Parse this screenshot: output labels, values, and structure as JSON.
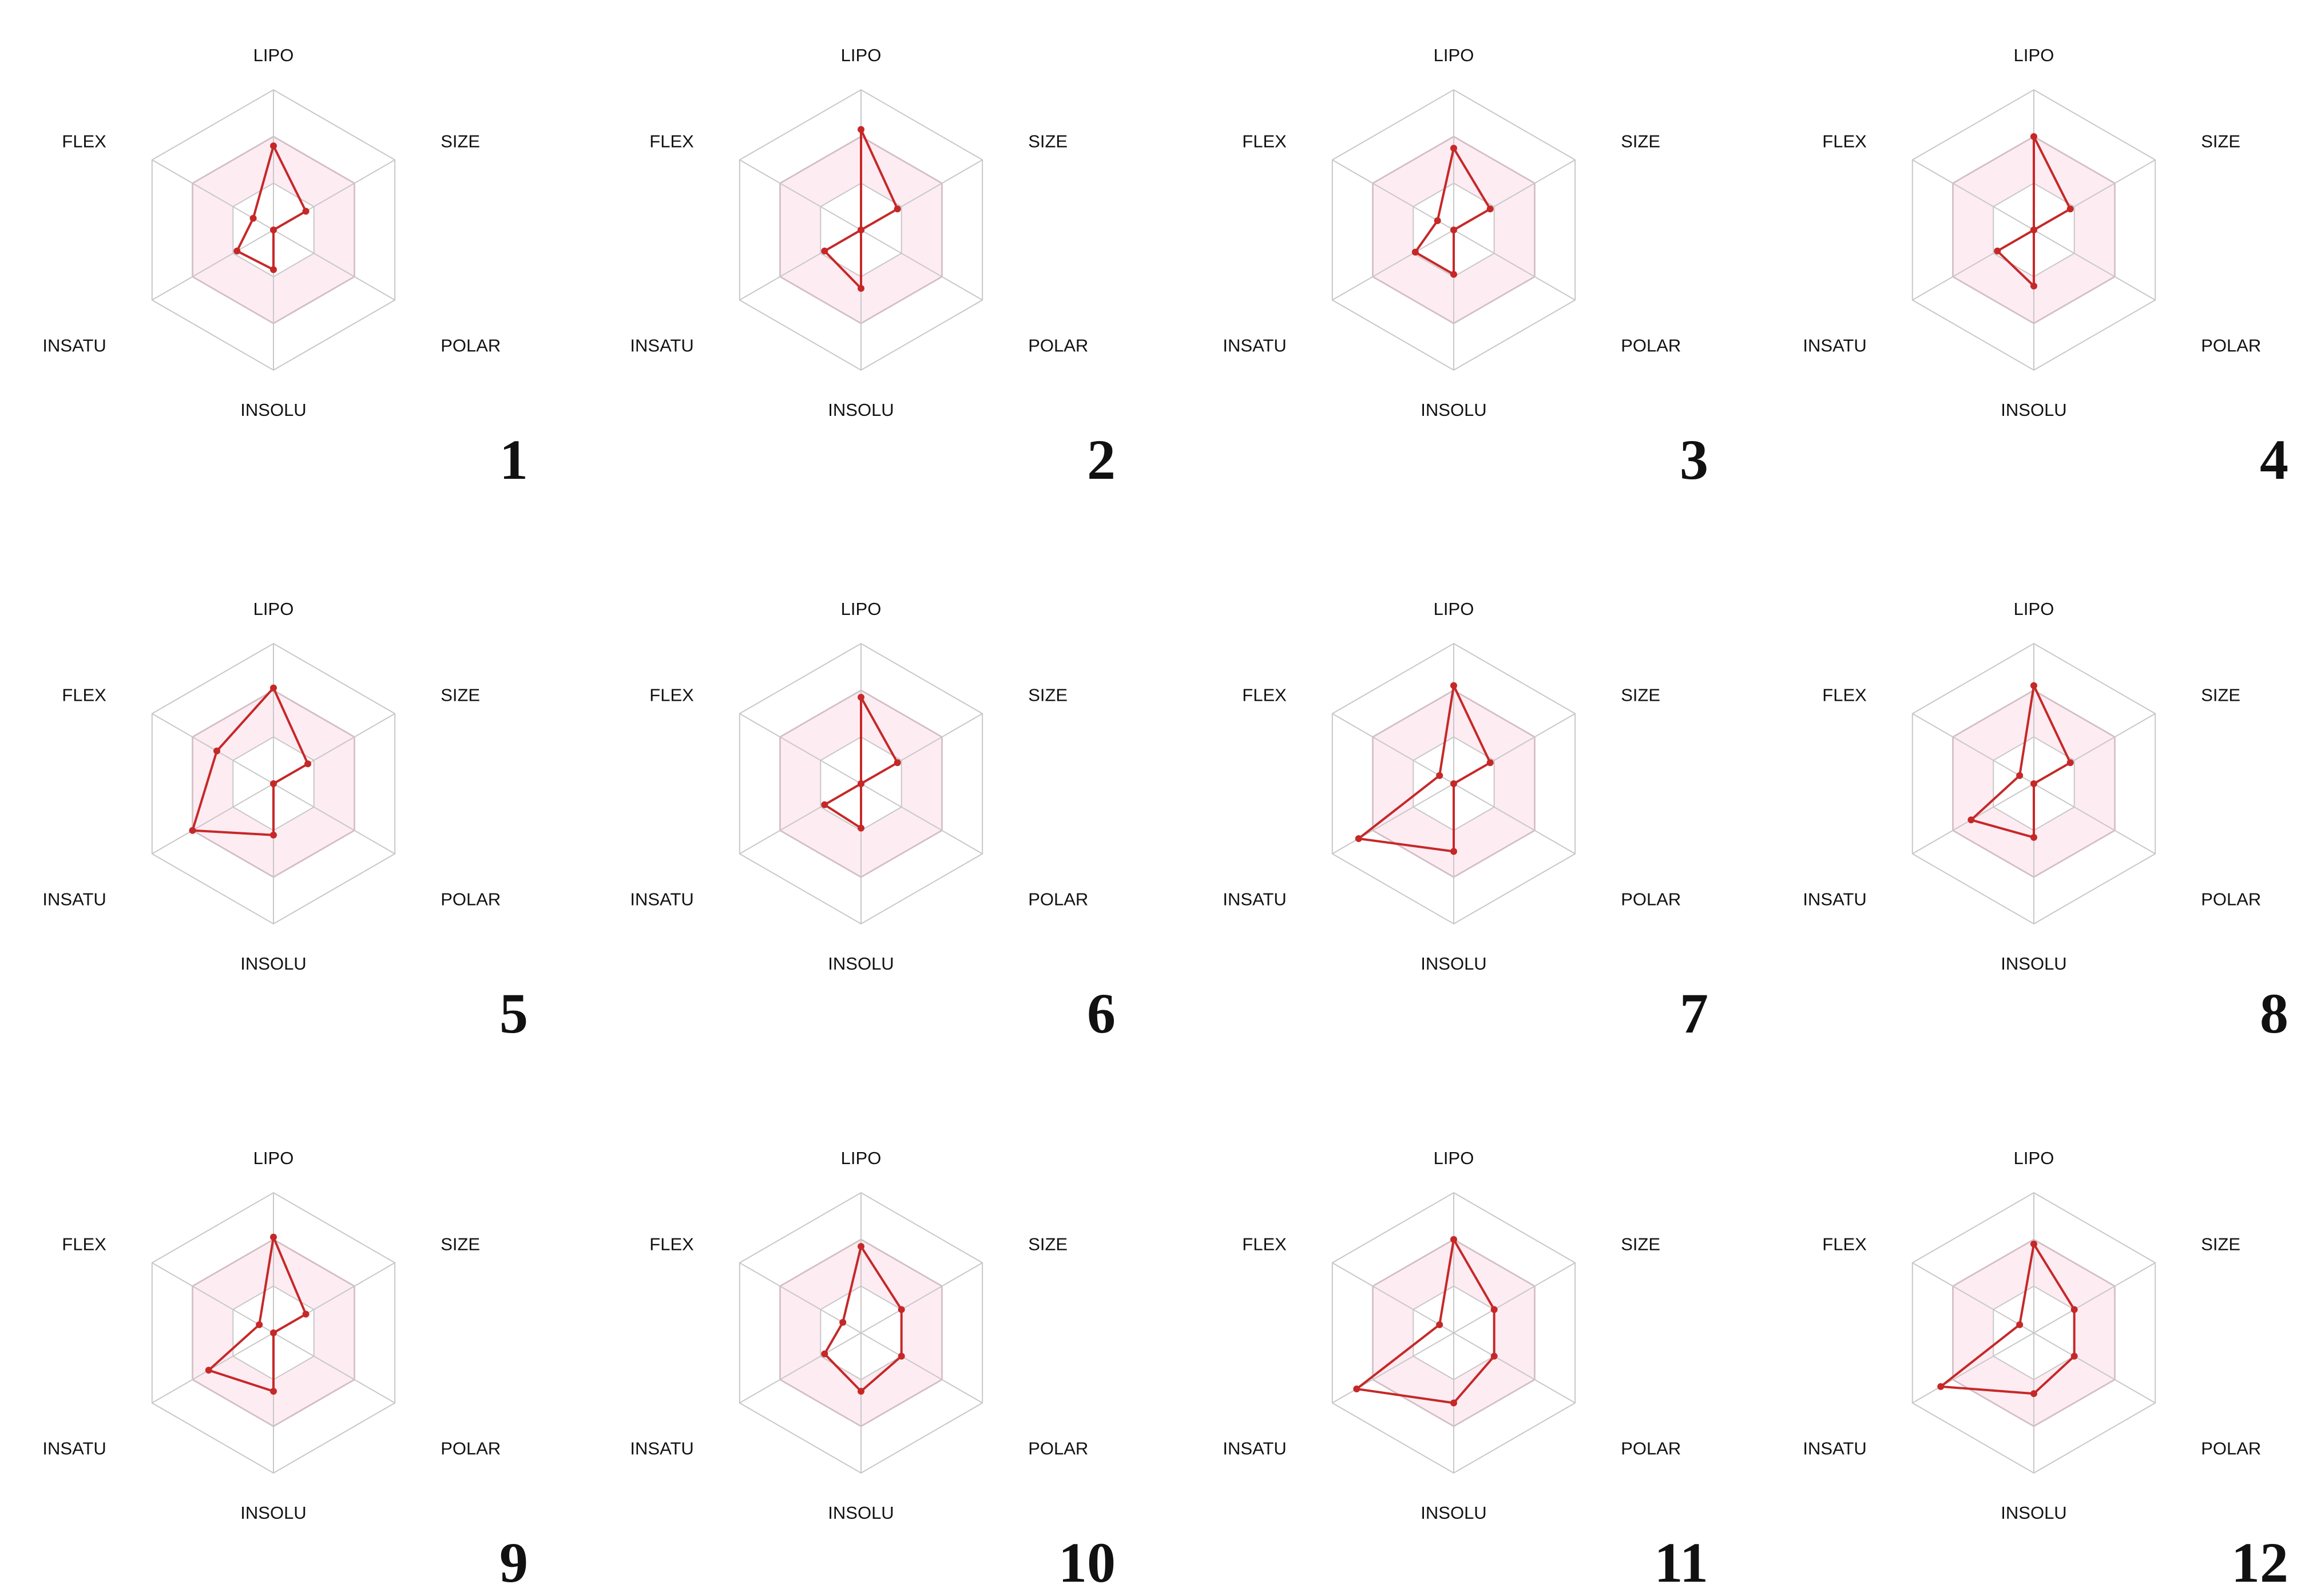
{
  "chart_data": {
    "type": "radar",
    "axes": [
      "LIPO",
      "SIZE",
      "POLAR",
      "INSOLU",
      "INSATU",
      "FLEX"
    ],
    "axis_max": 3,
    "grid_levels": 3,
    "optimal_range_band": true,
    "colors": {
      "series_line": "#c62828",
      "series_point": "#c62828",
      "optimal_fill": "#fde4ee",
      "optimal_stroke": "#e8809a",
      "grid": "#c8c8c8"
    },
    "panels": [
      {
        "panel_label": "1",
        "values": [
          1.8,
          0.8,
          0.0,
          0.85,
          0.9,
          0.5
        ]
      },
      {
        "panel_label": "2",
        "values": [
          2.15,
          0.9,
          0.0,
          1.25,
          0.9,
          0.0
        ]
      },
      {
        "panel_label": "3",
        "values": [
          1.75,
          0.9,
          0.0,
          0.95,
          0.95,
          0.4
        ]
      },
      {
        "panel_label": "4",
        "values": [
          2.0,
          0.9,
          0.0,
          1.2,
          0.9,
          0.0
        ]
      },
      {
        "panel_label": "5",
        "values": [
          2.05,
          0.85,
          0.0,
          1.1,
          2.0,
          1.4
        ]
      },
      {
        "panel_label": "6",
        "values": [
          1.85,
          0.9,
          0.0,
          0.95,
          0.9,
          0.0
        ]
      },
      {
        "panel_label": "7",
        "values": [
          2.1,
          0.9,
          0.0,
          1.45,
          2.35,
          0.35
        ]
      },
      {
        "panel_label": "8",
        "values": [
          2.1,
          0.9,
          0.0,
          1.15,
          1.55,
          0.35
        ]
      },
      {
        "panel_label": "9",
        "values": [
          2.05,
          0.8,
          0.0,
          1.25,
          1.6,
          0.35
        ]
      },
      {
        "panel_label": "10",
        "values": [
          1.85,
          1.0,
          1.0,
          1.25,
          0.9,
          0.45
        ]
      },
      {
        "panel_label": "11",
        "values": [
          2.0,
          1.0,
          1.0,
          1.5,
          2.4,
          0.35
        ]
      },
      {
        "panel_label": "12",
        "values": [
          1.9,
          1.0,
          1.0,
          1.3,
          2.3,
          0.35
        ]
      }
    ]
  }
}
